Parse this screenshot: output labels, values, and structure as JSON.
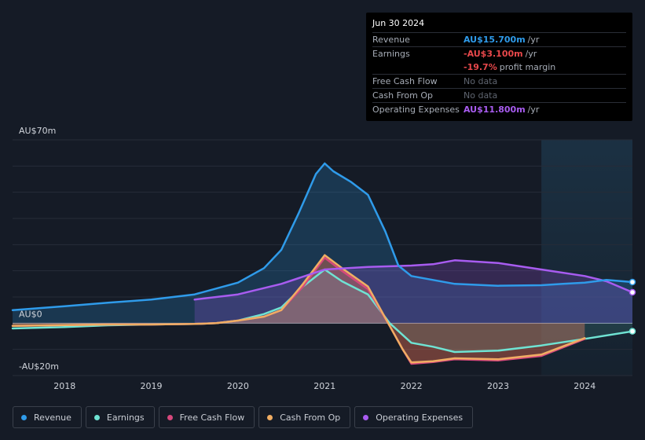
{
  "tooltip": {
    "date": "Jun 30 2024",
    "rows": [
      {
        "label": "Revenue",
        "value": "AU$15.700m",
        "suffix": "/yr",
        "color": "#2f9bea"
      },
      {
        "label": "Earnings",
        "value": "-AU$3.100m",
        "suffix": "/yr",
        "color": "#e8484b"
      },
      {
        "label": "",
        "value": "-19.7%",
        "suffix": "profit margin",
        "color": "#e8484b"
      },
      {
        "label": "Free Cash Flow",
        "value": "No data",
        "suffix": "",
        "color": "#5f6570"
      },
      {
        "label": "Cash From Op",
        "value": "No data",
        "suffix": "",
        "color": "#5f6570"
      },
      {
        "label": "Operating Expenses",
        "value": "AU$11.800m",
        "suffix": "/yr",
        "color": "#a85cf0"
      }
    ]
  },
  "legend": [
    {
      "label": "Revenue",
      "color": "#2f9bea"
    },
    {
      "label": "Earnings",
      "color": "#6fe3d3"
    },
    {
      "label": "Free Cash Flow",
      "color": "#d6487c"
    },
    {
      "label": "Cash From Op",
      "color": "#f0ad63"
    },
    {
      "label": "Operating Expenses",
      "color": "#a85cf0"
    }
  ],
  "chart_data": {
    "type": "area",
    "title": "",
    "xlabel": "",
    "ylabel": "",
    "unit": "AU$m",
    "y_axis_labels": [
      "AU$70m",
      "AU$0",
      "-AU$20m"
    ],
    "ylim": [
      -20,
      70
    ],
    "xlim": [
      2017.4,
      2024.55
    ],
    "x_ticks": [
      2018,
      2019,
      2020,
      2021,
      2022,
      2023,
      2024
    ],
    "x_tick_labels": [
      "2018",
      "2019",
      "2020",
      "2021",
      "2022",
      "2023",
      "2024"
    ],
    "forecast_start": 2023.5,
    "series": [
      {
        "name": "Revenue",
        "color": "#2f9bea",
        "points": [
          [
            2017.4,
            5
          ],
          [
            2018,
            6.5
          ],
          [
            2018.5,
            7.8
          ],
          [
            2019,
            9
          ],
          [
            2019.5,
            11
          ],
          [
            2020,
            15.5
          ],
          [
            2020.3,
            21
          ],
          [
            2020.5,
            28
          ],
          [
            2020.7,
            42
          ],
          [
            2020.9,
            57
          ],
          [
            2021,
            61
          ],
          [
            2021.1,
            58
          ],
          [
            2021.3,
            54
          ],
          [
            2021.5,
            49
          ],
          [
            2021.7,
            35
          ],
          [
            2021.85,
            22
          ],
          [
            2022,
            18
          ],
          [
            2022.25,
            16.5
          ],
          [
            2022.5,
            15
          ],
          [
            2023,
            14.3
          ],
          [
            2023.5,
            14.5
          ],
          [
            2023.75,
            15
          ],
          [
            2024,
            15.5
          ],
          [
            2024.25,
            16.5
          ],
          [
            2024.55,
            15.7
          ]
        ]
      },
      {
        "name": "Earnings",
        "color": "#6fe3d3",
        "points": [
          [
            2017.4,
            -2
          ],
          [
            2018,
            -1.5
          ],
          [
            2018.5,
            -0.8
          ],
          [
            2019,
            -0.5
          ],
          [
            2019.5,
            -0.3
          ],
          [
            2019.75,
            0
          ],
          [
            2020,
            1
          ],
          [
            2020.3,
            3.5
          ],
          [
            2020.5,
            6
          ],
          [
            2020.75,
            14
          ],
          [
            2021,
            20.5
          ],
          [
            2021.2,
            16
          ],
          [
            2021.5,
            11
          ],
          [
            2021.75,
            0
          ],
          [
            2022,
            -7.5
          ],
          [
            2022.25,
            -9
          ],
          [
            2022.5,
            -11
          ],
          [
            2023,
            -10.5
          ],
          [
            2023.5,
            -8.5
          ],
          [
            2024,
            -6
          ],
          [
            2024.55,
            -3.1
          ]
        ]
      },
      {
        "name": "Free Cash Flow",
        "color": "#d6487c",
        "points": [
          [
            2017.4,
            -1
          ],
          [
            2018,
            -0.7
          ],
          [
            2018.5,
            -0.5
          ],
          [
            2019,
            -0.5
          ],
          [
            2019.5,
            -0.3
          ],
          [
            2019.75,
            0
          ],
          [
            2020,
            1
          ],
          [
            2020.3,
            2.5
          ],
          [
            2020.5,
            5
          ],
          [
            2020.75,
            14
          ],
          [
            2021,
            25
          ],
          [
            2021.2,
            20
          ],
          [
            2021.5,
            13
          ],
          [
            2021.75,
            -1
          ],
          [
            2021.9,
            -10
          ],
          [
            2022,
            -15.5
          ],
          [
            2022.25,
            -14.8
          ],
          [
            2022.5,
            -13.8
          ],
          [
            2023,
            -14.2
          ],
          [
            2023.5,
            -12.5
          ],
          [
            2024,
            -6
          ]
        ]
      },
      {
        "name": "Cash From Op",
        "color": "#f0ad63",
        "points": [
          [
            2017.4,
            -1
          ],
          [
            2018,
            -0.7
          ],
          [
            2018.5,
            -0.5
          ],
          [
            2019,
            -0.5
          ],
          [
            2019.5,
            -0.3
          ],
          [
            2019.75,
            0
          ],
          [
            2020,
            1
          ],
          [
            2020.3,
            2.5
          ],
          [
            2020.5,
            5
          ],
          [
            2020.75,
            15
          ],
          [
            2021,
            26
          ],
          [
            2021.2,
            21
          ],
          [
            2021.5,
            14
          ],
          [
            2021.75,
            -1
          ],
          [
            2021.9,
            -10
          ],
          [
            2022,
            -15
          ],
          [
            2022.25,
            -14.5
          ],
          [
            2022.5,
            -13.4
          ],
          [
            2023,
            -13.8
          ],
          [
            2023.5,
            -12
          ],
          [
            2024,
            -5.7
          ]
        ]
      },
      {
        "name": "Operating Expenses",
        "color": "#a85cf0",
        "points": [
          [
            2019.5,
            9
          ],
          [
            2020,
            11
          ],
          [
            2020.5,
            15
          ],
          [
            2021,
            20.5
          ],
          [
            2021.5,
            21.5
          ],
          [
            2022,
            22
          ],
          [
            2022.25,
            22.5
          ],
          [
            2022.5,
            24
          ],
          [
            2023,
            23
          ],
          [
            2023.5,
            20.5
          ],
          [
            2024,
            18
          ],
          [
            2024.25,
            16
          ],
          [
            2024.55,
            11.8
          ]
        ]
      }
    ]
  }
}
